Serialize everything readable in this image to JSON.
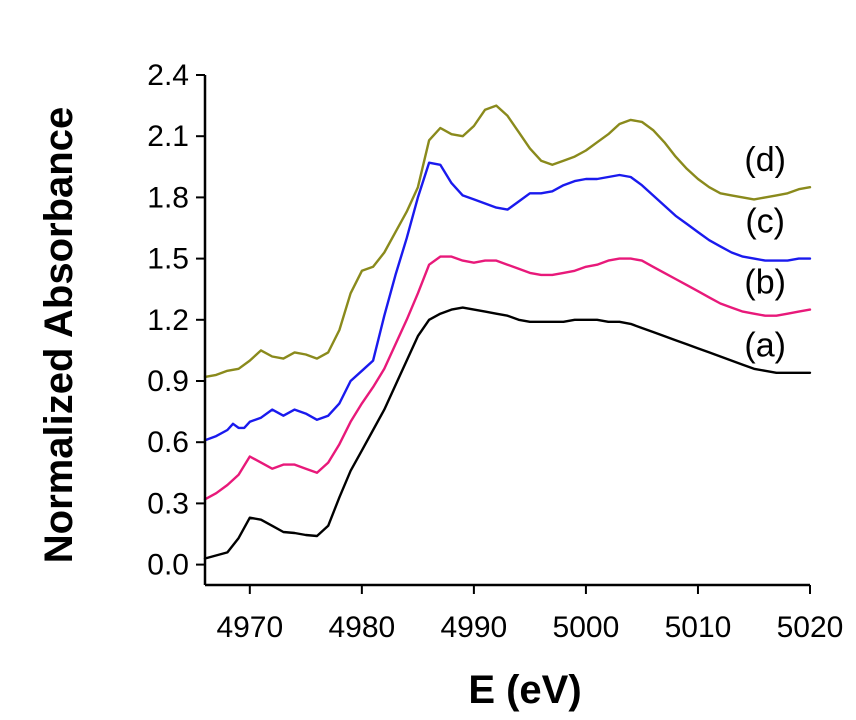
{
  "chart_data": {
    "type": "line",
    "title": "",
    "xlabel": "E (eV)",
    "ylabel": "Normalized Absorbance",
    "xlim": [
      4966,
      5020
    ],
    "ylim": [
      -0.1,
      2.4
    ],
    "xticks": [
      4970,
      4980,
      4990,
      5000,
      5010,
      5020
    ],
    "yticks": [
      0.0,
      0.3,
      0.6,
      0.9,
      1.2,
      1.5,
      1.8,
      2.1,
      2.4
    ],
    "xtick_labels": [
      "4970",
      "4980",
      "4990",
      "5000",
      "5010",
      "5020"
    ],
    "ytick_labels": [
      "0.0",
      "0.3",
      "0.6",
      "0.9",
      "1.2",
      "1.5",
      "1.8",
      "2.1",
      "2.4"
    ],
    "grid": false,
    "series": [
      {
        "name": "(a)",
        "color": "#000000",
        "x": [
          4966,
          4968,
          4969,
          4970,
          4971,
          4972,
          4973,
          4974,
          4975,
          4976,
          4977,
          4978,
          4979,
          4980,
          4981,
          4982,
          4983,
          4984,
          4985,
          4986,
          4987,
          4988,
          4989,
          4990,
          4991,
          4992,
          4993,
          4994,
          4995,
          4996,
          4997,
          4998,
          4999,
          5000,
          5001,
          5002,
          5003,
          5004,
          5005,
          5006,
          5007,
          5008,
          5009,
          5010,
          5011,
          5012,
          5013,
          5014,
          5015,
          5016,
          5017,
          5018,
          5019,
          5020
        ],
        "y": [
          0.03,
          0.06,
          0.13,
          0.23,
          0.22,
          0.19,
          0.16,
          0.155,
          0.145,
          0.14,
          0.19,
          0.33,
          0.46,
          0.56,
          0.66,
          0.76,
          0.88,
          1.0,
          1.12,
          1.2,
          1.23,
          1.25,
          1.26,
          1.25,
          1.24,
          1.23,
          1.22,
          1.2,
          1.19,
          1.19,
          1.19,
          1.19,
          1.2,
          1.2,
          1.2,
          1.19,
          1.19,
          1.18,
          1.16,
          1.14,
          1.12,
          1.1,
          1.08,
          1.06,
          1.04,
          1.02,
          1.0,
          0.98,
          0.96,
          0.95,
          0.94,
          0.94,
          0.94,
          0.94
        ]
      },
      {
        "name": "(b)",
        "color": "#e8197a",
        "x": [
          4966,
          4967,
          4968,
          4969,
          4970,
          4971,
          4972,
          4973,
          4974,
          4975,
          4976,
          4977,
          4978,
          4979,
          4980,
          4981,
          4982,
          4983,
          4984,
          4985,
          4986,
          4987,
          4988,
          4989,
          4990,
          4991,
          4992,
          4993,
          4994,
          4995,
          4996,
          4997,
          4998,
          4999,
          5000,
          5001,
          5002,
          5003,
          5004,
          5005,
          5006,
          5007,
          5008,
          5009,
          5010,
          5011,
          5012,
          5013,
          5014,
          5015,
          5016,
          5017,
          5018,
          5019,
          5020
        ],
        "y": [
          0.32,
          0.35,
          0.39,
          0.44,
          0.53,
          0.5,
          0.47,
          0.49,
          0.49,
          0.47,
          0.45,
          0.5,
          0.59,
          0.7,
          0.79,
          0.87,
          0.96,
          1.08,
          1.2,
          1.33,
          1.47,
          1.51,
          1.51,
          1.49,
          1.48,
          1.49,
          1.49,
          1.47,
          1.45,
          1.43,
          1.42,
          1.42,
          1.43,
          1.44,
          1.46,
          1.47,
          1.49,
          1.5,
          1.5,
          1.49,
          1.46,
          1.43,
          1.4,
          1.37,
          1.34,
          1.31,
          1.28,
          1.26,
          1.24,
          1.23,
          1.22,
          1.22,
          1.23,
          1.24,
          1.25
        ]
      },
      {
        "name": "(c)",
        "color": "#1a1aee",
        "x": [
          4966,
          4967,
          4968,
          4968.5,
          4969,
          4969.5,
          4970,
          4971,
          4972,
          4973,
          4974,
          4975,
          4976,
          4977,
          4978,
          4979,
          4980,
          4981,
          4982,
          4983,
          4984,
          4985,
          4986,
          4987,
          4988,
          4989,
          4990,
          4991,
          4992,
          4993,
          4994,
          4995,
          4996,
          4997,
          4998,
          4999,
          5000,
          5001,
          5002,
          5003,
          5004,
          5005,
          5006,
          5007,
          5008,
          5009,
          5010,
          5011,
          5012,
          5013,
          5014,
          5015,
          5016,
          5017,
          5018,
          5019,
          5020
        ],
        "y": [
          0.61,
          0.63,
          0.66,
          0.69,
          0.67,
          0.67,
          0.7,
          0.72,
          0.76,
          0.73,
          0.76,
          0.74,
          0.71,
          0.73,
          0.79,
          0.9,
          0.95,
          1.0,
          1.22,
          1.42,
          1.6,
          1.8,
          1.97,
          1.96,
          1.87,
          1.81,
          1.79,
          1.77,
          1.75,
          1.74,
          1.78,
          1.82,
          1.82,
          1.83,
          1.86,
          1.88,
          1.89,
          1.89,
          1.9,
          1.91,
          1.9,
          1.86,
          1.81,
          1.76,
          1.71,
          1.67,
          1.63,
          1.59,
          1.56,
          1.53,
          1.51,
          1.5,
          1.49,
          1.49,
          1.49,
          1.5,
          1.5
        ]
      },
      {
        "name": "(d)",
        "color": "#8a8a1c",
        "x": [
          4966,
          4967,
          4968,
          4969,
          4970,
          4971,
          4972,
          4973,
          4974,
          4975,
          4976,
          4977,
          4978,
          4979,
          4980,
          4981,
          4982,
          4983,
          4984,
          4985,
          4986,
          4987,
          4988,
          4989,
          4990,
          4991,
          4992,
          4993,
          4994,
          4995,
          4996,
          4997,
          4998,
          4999,
          5000,
          5001,
          5002,
          5003,
          5004,
          5005,
          5006,
          5007,
          5008,
          5009,
          5010,
          5011,
          5012,
          5013,
          5014,
          5015,
          5016,
          5017,
          5018,
          5019,
          5020
        ],
        "y": [
          0.92,
          0.93,
          0.95,
          0.96,
          1.0,
          1.05,
          1.02,
          1.01,
          1.04,
          1.03,
          1.01,
          1.04,
          1.15,
          1.33,
          1.44,
          1.46,
          1.53,
          1.63,
          1.73,
          1.85,
          2.08,
          2.14,
          2.11,
          2.1,
          2.15,
          2.23,
          2.25,
          2.2,
          2.12,
          2.04,
          1.98,
          1.96,
          1.98,
          2.0,
          2.03,
          2.07,
          2.11,
          2.16,
          2.18,
          2.17,
          2.13,
          2.07,
          2.0,
          1.94,
          1.89,
          1.85,
          1.82,
          1.81,
          1.8,
          1.79,
          1.8,
          1.81,
          1.82,
          1.84,
          1.85
        ]
      }
    ]
  }
}
